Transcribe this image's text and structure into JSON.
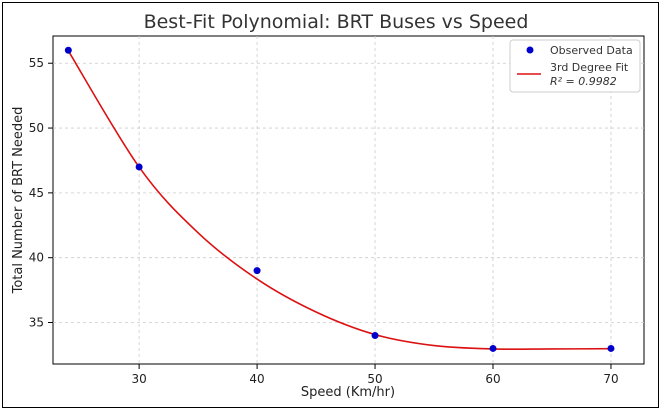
{
  "chart_data": {
    "type": "scatter",
    "title": "Best-Fit Polynomial: BRT Buses vs Speed",
    "xlabel": "Speed (Km/hr)",
    "ylabel": "Total Number of BRT Needed",
    "xlim": [
      22.7,
      72.8
    ],
    "ylim": [
      31.8,
      57.1
    ],
    "xticks": [
      30,
      40,
      50,
      60,
      70
    ],
    "yticks": [
      35,
      40,
      45,
      50,
      55
    ],
    "grid": true,
    "legend_position": "top-right",
    "series": [
      {
        "name": "Observed Data",
        "kind": "scatter",
        "color": "#0000cc",
        "x": [
          24,
          30,
          40,
          50,
          60,
          70
        ],
        "y": [
          56,
          47,
          39,
          34,
          33,
          33
        ]
      },
      {
        "name": "3rd Degree Fit",
        "kind": "line",
        "color": "#dd1111",
        "r2_label": "R² = 0.9982",
        "x": [
          24,
          30,
          35,
          40,
          45,
          50,
          55,
          60,
          65,
          70
        ],
        "y": [
          55.96,
          46.99,
          41.92,
          38.35,
          35.81,
          34.07,
          33.22,
          32.96,
          32.96,
          32.98
        ]
      }
    ]
  }
}
